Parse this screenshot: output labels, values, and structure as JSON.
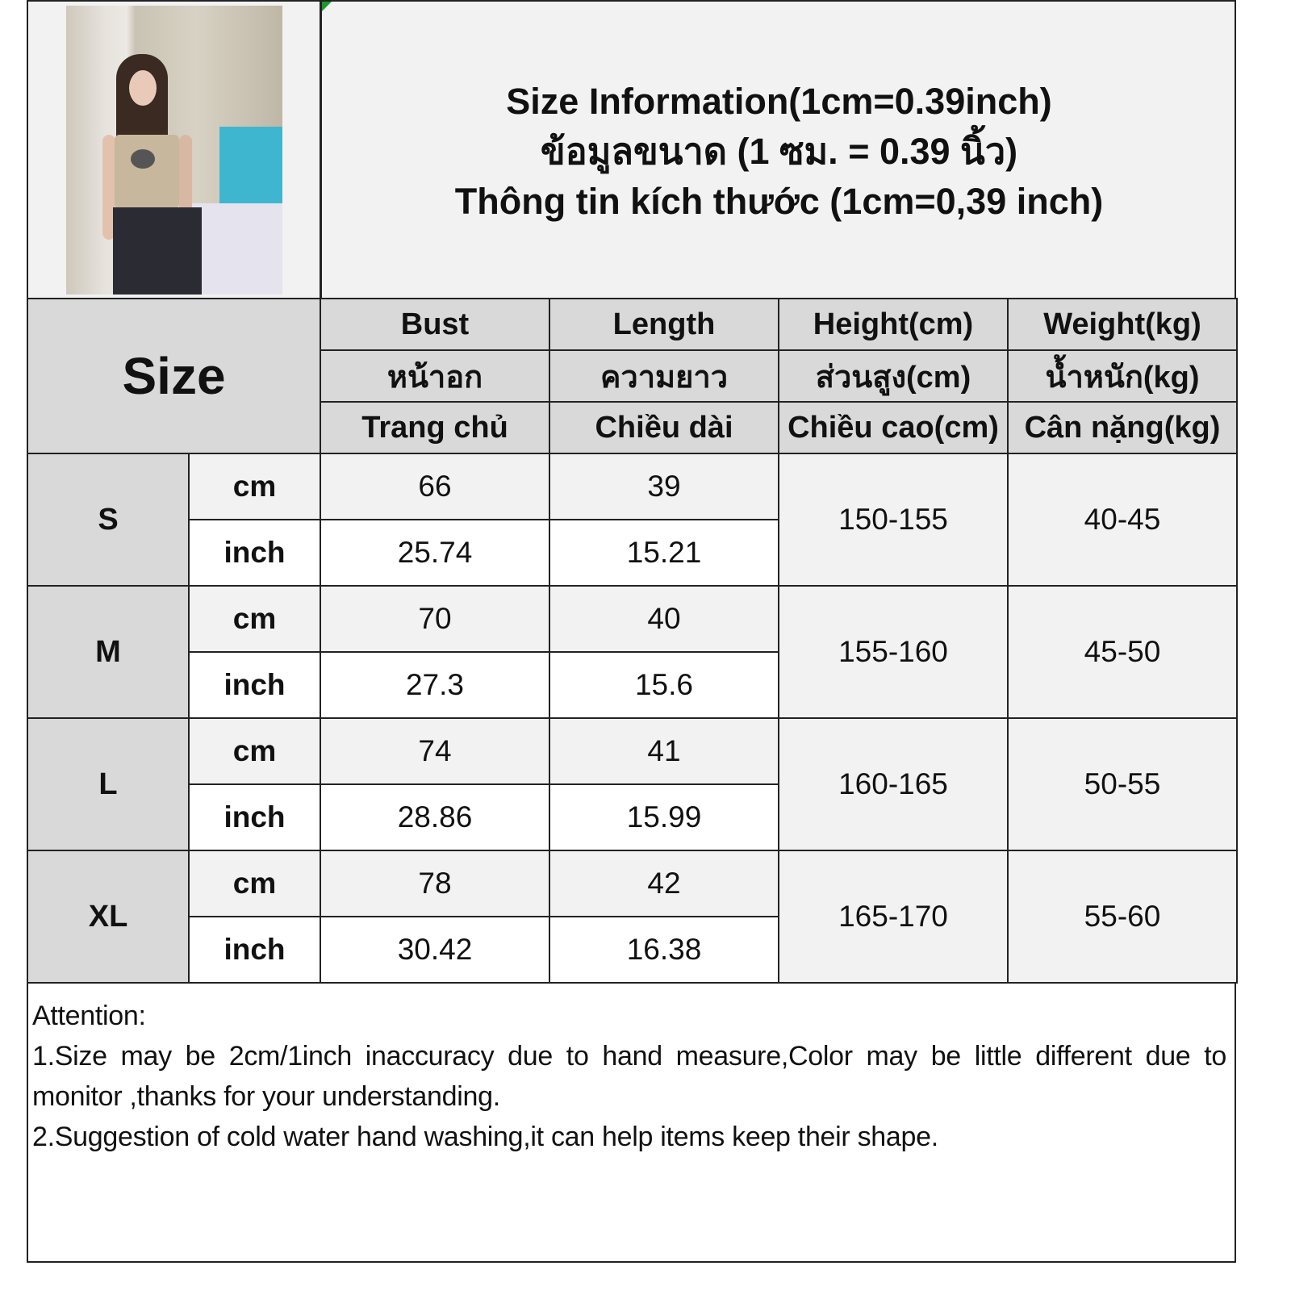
{
  "title_lines": [
    "Size Information(1cm=0.39inch)",
    "ข้อมูลขนาด (1 ซม. = 0.39 นิ้ว)",
    "Thông tin kích thước (1cm=0,39 inch)"
  ],
  "size_header": "Size",
  "columns": [
    {
      "en": "Bust",
      "th": "หน้าอก",
      "vi": "Trang chủ"
    },
    {
      "en": "Length",
      "th": "ความยาว",
      "vi": "Chiều dài"
    },
    {
      "en": "Height(cm)",
      "th": "ส่วนสูง(cm)",
      "vi": "Chiều cao(cm)"
    },
    {
      "en": "Weight(kg)",
      "th": "น้ำหนัก(kg)",
      "vi": "Cân nặng(kg)"
    }
  ],
  "unit_labels": {
    "cm": "cm",
    "inch": "inch"
  },
  "rows": [
    {
      "size": "S",
      "cm": {
        "bust": "66",
        "length": "39"
      },
      "inch": {
        "bust": "25.74",
        "length": "15.21"
      },
      "height": "150-155",
      "weight": "40-45"
    },
    {
      "size": "M",
      "cm": {
        "bust": "70",
        "length": "40"
      },
      "inch": {
        "bust": "27.3",
        "length": "15.6"
      },
      "height": "155-160",
      "weight": "45-50"
    },
    {
      "size": "L",
      "cm": {
        "bust": "74",
        "length": "41"
      },
      "inch": {
        "bust": "28.86",
        "length": "15.99"
      },
      "height": "160-165",
      "weight": "50-55"
    },
    {
      "size": "XL",
      "cm": {
        "bust": "78",
        "length": "42"
      },
      "inch": {
        "bust": "30.42",
        "length": "16.38"
      },
      "height": "165-170",
      "weight": "55-60"
    }
  ],
  "notes": [
    "Attention:",
    "1.Size may be 2cm/1inch inaccuracy due to hand measure,Color may be little different due to monitor ,thanks for your understanding.",
    "2.Suggestion of cold water hand washing,it can help items keep their shape."
  ]
}
